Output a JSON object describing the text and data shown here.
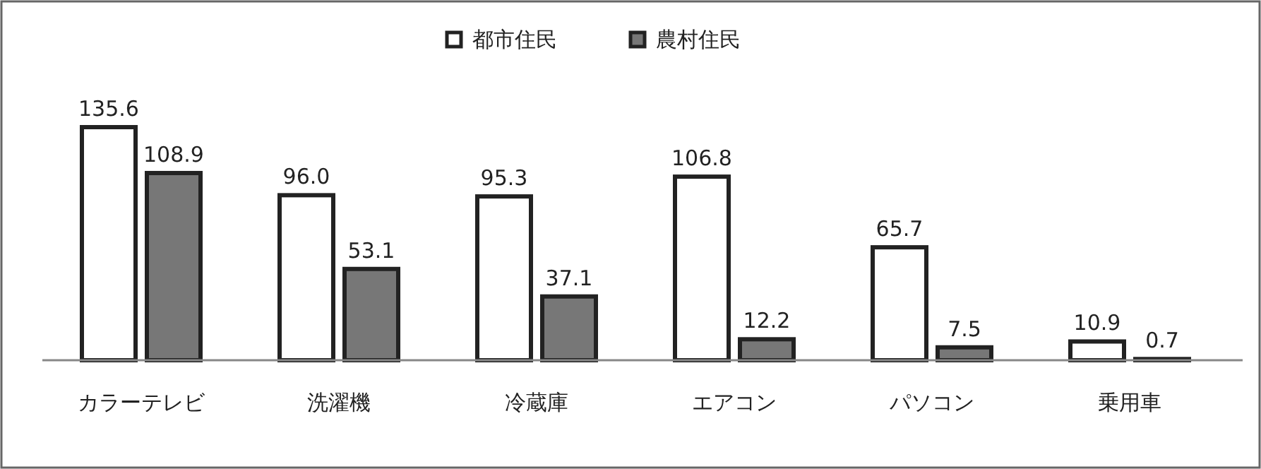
{
  "chart_data": {
    "type": "bar",
    "categories": [
      "カラーテレビ",
      "洗濯機",
      "冷蔵庫",
      "エアコン",
      "パソコン",
      "乗用車"
    ],
    "series": [
      {
        "name": "都市住民",
        "color": "#ffffff",
        "values": [
          135.6,
          96.0,
          95.3,
          106.8,
          65.7,
          10.9
        ],
        "value_labels": [
          "135.6",
          "96.0",
          "95.3",
          "106.8",
          "65.7",
          "10.9"
        ]
      },
      {
        "name": "農村住民",
        "color": "#777777",
        "values": [
          108.9,
          53.1,
          37.1,
          12.2,
          7.5,
          0.7
        ],
        "value_labels": [
          "108.9",
          "53.1",
          "37.1",
          "12.2",
          "7.5",
          "0.7"
        ]
      }
    ],
    "legend": "top"
  }
}
